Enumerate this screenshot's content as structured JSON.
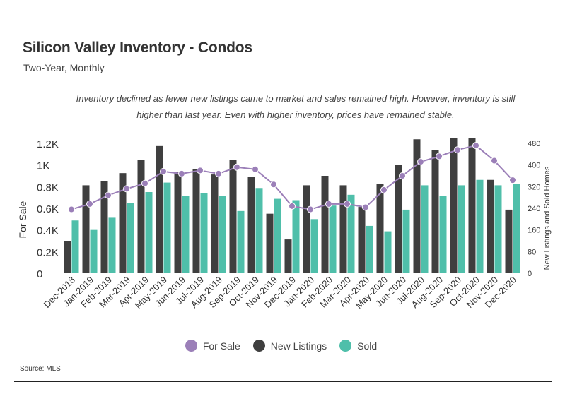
{
  "title": "Silicon Valley Inventory - Condos",
  "subtitle": "Two-Year, Monthly",
  "annotation": "Inventory declined as fewer new listings came to market and sales remained high. However, inventory is still higher than last year. Even with higher inventory, prices have remained stable.",
  "source": "Source:  MLS",
  "colors": {
    "for_sale": "#9B7FB8",
    "new_listings": "#3F3F3F",
    "sold": "#4FBFAA",
    "axis_text": "#333333"
  },
  "legend": [
    {
      "label": "For Sale",
      "color": "#9B7FB8"
    },
    {
      "label": "New Listings",
      "color": "#3F3F3F"
    },
    {
      "label": "Sold",
      "color": "#4FBFAA"
    }
  ],
  "chart_data": {
    "type": "bar",
    "categories": [
      "Dec-2018",
      "Jan-2019",
      "Feb-2019",
      "Mar-2019",
      "Apr-2019",
      "May-2019",
      "Jun-2019",
      "Jul-2019",
      "Aug-2019",
      "Sep-2019",
      "Oct-2019",
      "Nov-2019",
      "Dec-2019",
      "Jan-2020",
      "Feb-2020",
      "Mar-2020",
      "Apr-2020",
      "May-2020",
      "Jun-2020",
      "Jul-2020",
      "Aug-2020",
      "Sep-2020",
      "Oct-2020",
      "Nov-2020",
      "Dec-2020"
    ],
    "ylabel_left": "For Sale",
    "ylabel_right": "New Listings and Sold Homes",
    "ylim_left": [
      0,
      1200
    ],
    "ylim_right": [
      0,
      480
    ],
    "left_ticks": [
      "0",
      "0.2K",
      "0.4K",
      "0.6K",
      "0.8K",
      "1K",
      "1.2K"
    ],
    "right_ticks": [
      "0",
      "80",
      "160",
      "240",
      "320",
      "400",
      "480"
    ],
    "series": [
      {
        "name": "New Listings",
        "axis": "right",
        "kind": "bar",
        "values": [
          120,
          325,
          340,
          370,
          420,
          470,
          375,
          385,
          365,
          420,
          355,
          220,
          125,
          325,
          360,
          325,
          245,
          330,
          400,
          495,
          455,
          500,
          500,
          345,
          235
        ]
      },
      {
        "name": "Sold",
        "axis": "right",
        "kind": "bar",
        "values": [
          195,
          160,
          205,
          260,
          300,
          335,
          285,
          295,
          285,
          230,
          315,
          275,
          270,
          200,
          250,
          290,
          175,
          155,
          235,
          325,
          285,
          325,
          345,
          325,
          330
        ]
      },
      {
        "name": "For Sale",
        "axis": "left",
        "kind": "line",
        "values": [
          590,
          640,
          720,
          780,
          830,
          940,
          920,
          950,
          920,
          980,
          960,
          820,
          620,
          590,
          640,
          640,
          610,
          770,
          900,
          1030,
          1080,
          1140,
          1180,
          1040,
          860
        ]
      }
    ]
  }
}
